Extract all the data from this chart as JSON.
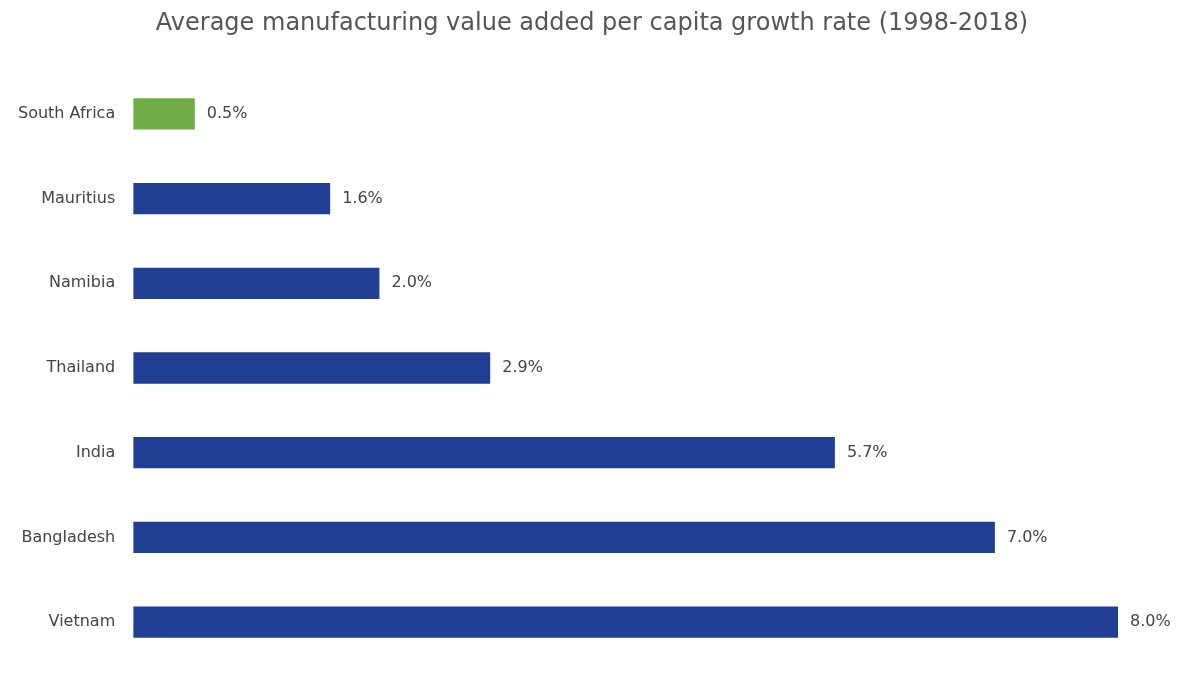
{
  "chart_data": {
    "type": "bar",
    "orientation": "horizontal",
    "title": "Average manufacturing value added per capita growth rate (1998-2018)",
    "categories": [
      "South Africa",
      "Mauritius",
      "Namibia",
      "Thailand",
      "India",
      "Bangladesh",
      "Vietnam"
    ],
    "values": [
      0.5,
      1.6,
      2.0,
      2.9,
      5.7,
      7.0,
      8.0
    ],
    "value_labels": [
      "0.5%",
      "1.6%",
      "2.0%",
      "2.9%",
      "5.7%",
      "7.0%",
      "8.0%"
    ],
    "colors": [
      "#70ad47",
      "#203f95",
      "#203f95",
      "#203f95",
      "#203f95",
      "#203f95",
      "#203f95"
    ],
    "xlim": [
      0,
      8
    ],
    "tick_labels": "y"
  }
}
